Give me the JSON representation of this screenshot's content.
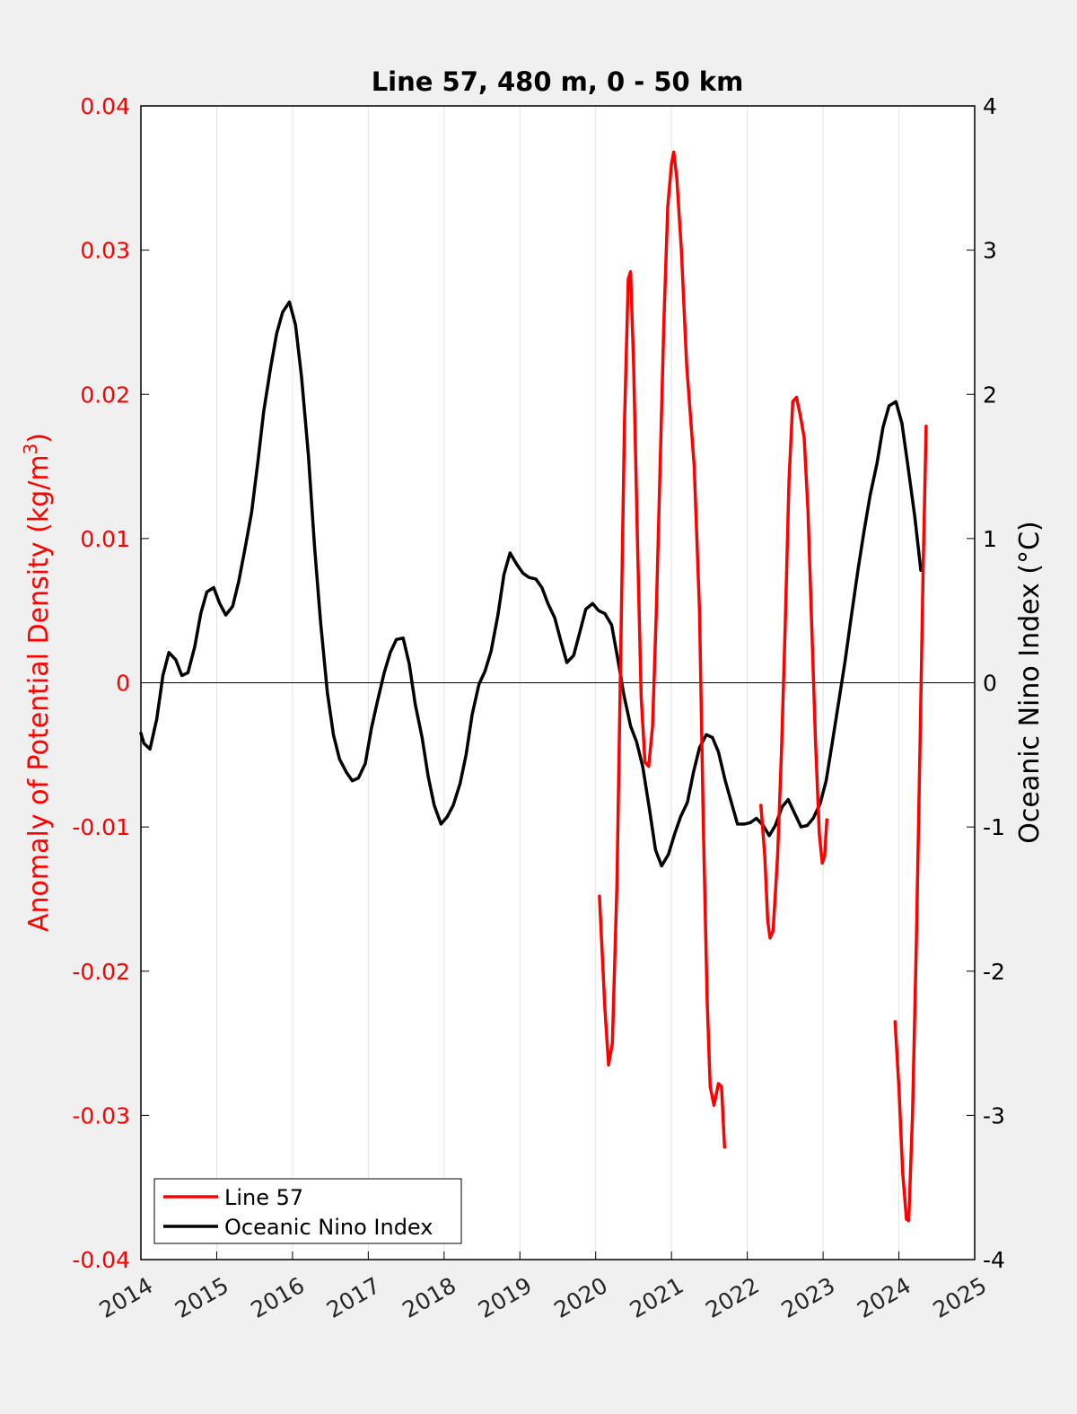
{
  "chart_data": {
    "type": "line",
    "title": "Line 57, 480 m, 0 - 50 km",
    "xlabel": "",
    "ylabel_left": "Anomaly of Potential Density (kg/m",
    "ylabel_left_sup": "3",
    "ylabel_left_close": ")",
    "ylabel_right": "Oceanic Nino Index (°C)",
    "xlim": [
      2014,
      2025
    ],
    "ylim_left": [
      -0.04,
      0.04
    ],
    "ylim_right": [
      -4,
      4
    ],
    "x_ticks": [
      "2014",
      "2015",
      "2016",
      "2017",
      "2018",
      "2019",
      "2020",
      "2021",
      "2022",
      "2023",
      "2024",
      "2025"
    ],
    "y_left_ticks": [
      "0.04",
      "0.03",
      "0.02",
      "0.01",
      "0",
      "-0.01",
      "-0.02",
      "-0.03",
      "-0.04"
    ],
    "y_right_ticks": [
      "4",
      "3",
      "2",
      "1",
      "0",
      "-1",
      "-2",
      "-3",
      "-4"
    ],
    "grid": "vertical",
    "legend": {
      "position": "bottom-left",
      "entries": [
        "Line 57",
        "Oceanic Nino Index"
      ]
    },
    "colors": {
      "line57": "#ff0000",
      "oni": "#000000",
      "left_axis": "#ff0000",
      "right_axis": "#000000"
    },
    "series": [
      {
        "name": "Line 57",
        "axis": "left",
        "segments": [
          [
            [
              2020.05,
              -0.0148
            ],
            [
              2020.12,
              -0.0225
            ],
            [
              2020.17,
              -0.0265
            ],
            [
              2020.22,
              -0.025
            ],
            [
              2020.28,
              -0.014
            ],
            [
              2020.33,
              0.002
            ],
            [
              2020.38,
              0.018
            ],
            [
              2020.43,
              0.028
            ],
            [
              2020.46,
              0.0285
            ],
            [
              2020.5,
              0.022
            ],
            [
              2020.55,
              0.01
            ],
            [
              2020.6,
              -0.001
            ],
            [
              2020.65,
              -0.0055
            ],
            [
              2020.7,
              -0.0058
            ],
            [
              2020.75,
              -0.003
            ],
            [
              2020.8,
              0.005
            ],
            [
              2020.85,
              0.015
            ],
            [
              2020.9,
              0.025
            ],
            [
              2020.95,
              0.033
            ],
            [
              2021.0,
              0.036
            ],
            [
              2021.03,
              0.0368
            ],
            [
              2021.07,
              0.035
            ],
            [
              2021.13,
              0.03
            ],
            [
              2021.2,
              0.022
            ],
            [
              2021.3,
              0.015
            ],
            [
              2021.37,
              0.005
            ],
            [
              2021.42,
              -0.01
            ],
            [
              2021.47,
              -0.022
            ],
            [
              2021.51,
              -0.028
            ],
            [
              2021.56,
              -0.0293
            ],
            [
              2021.62,
              -0.0278
            ],
            [
              2021.66,
              -0.028
            ],
            [
              2021.7,
              -0.0322
            ]
          ],
          [
            [
              2022.18,
              -0.0085
            ],
            [
              2022.23,
              -0.012
            ],
            [
              2022.27,
              -0.0165
            ],
            [
              2022.3,
              -0.0177
            ],
            [
              2022.34,
              -0.0172
            ],
            [
              2022.4,
              -0.012
            ],
            [
              2022.45,
              -0.005
            ],
            [
              2022.5,
              0.004
            ],
            [
              2022.55,
              0.014
            ],
            [
              2022.6,
              0.0195
            ],
            [
              2022.65,
              0.0198
            ],
            [
              2022.7,
              0.0185
            ],
            [
              2022.75,
              0.017
            ],
            [
              2022.8,
              0.012
            ],
            [
              2022.85,
              0.004
            ],
            [
              2022.9,
              -0.004
            ],
            [
              2022.95,
              -0.0105
            ],
            [
              2022.99,
              -0.0125
            ],
            [
              2023.02,
              -0.012
            ],
            [
              2023.05,
              -0.0095
            ]
          ],
          [
            [
              2023.95,
              -0.0235
            ],
            [
              2024.0,
              -0.028
            ],
            [
              2024.05,
              -0.034
            ],
            [
              2024.1,
              -0.0372
            ],
            [
              2024.13,
              -0.0373
            ],
            [
              2024.18,
              -0.03
            ],
            [
              2024.23,
              -0.018
            ],
            [
              2024.28,
              -0.004
            ],
            [
              2024.32,
              0.008
            ],
            [
              2024.36,
              0.0178
            ]
          ]
        ]
      },
      {
        "name": "Oceanic Nino Index",
        "axis": "right",
        "segments": [
          [
            [
              2014.0,
              -0.35
            ],
            [
              2014.04,
              -0.42
            ],
            [
              2014.12,
              -0.46
            ],
            [
              2014.21,
              -0.25
            ],
            [
              2014.29,
              0.05
            ],
            [
              2014.37,
              0.21
            ],
            [
              2014.46,
              0.16
            ],
            [
              2014.54,
              0.05
            ],
            [
              2014.62,
              0.07
            ],
            [
              2014.71,
              0.25
            ],
            [
              2014.79,
              0.48
            ],
            [
              2014.87,
              0.63
            ],
            [
              2014.96,
              0.66
            ],
            [
              2015.04,
              0.55
            ],
            [
              2015.12,
              0.47
            ],
            [
              2015.21,
              0.53
            ],
            [
              2015.29,
              0.7
            ],
            [
              2015.37,
              0.92
            ],
            [
              2015.46,
              1.18
            ],
            [
              2015.54,
              1.52
            ],
            [
              2015.62,
              1.88
            ],
            [
              2015.71,
              2.18
            ],
            [
              2015.79,
              2.42
            ],
            [
              2015.87,
              2.57
            ],
            [
              2015.96,
              2.64
            ],
            [
              2016.04,
              2.48
            ],
            [
              2016.12,
              2.12
            ],
            [
              2016.21,
              1.58
            ],
            [
              2016.29,
              0.95
            ],
            [
              2016.37,
              0.42
            ],
            [
              2016.46,
              -0.07
            ],
            [
              2016.54,
              -0.36
            ],
            [
              2016.62,
              -0.53
            ],
            [
              2016.71,
              -0.62
            ],
            [
              2016.79,
              -0.68
            ],
            [
              2016.87,
              -0.66
            ],
            [
              2016.96,
              -0.56
            ],
            [
              2017.04,
              -0.32
            ],
            [
              2017.12,
              -0.13
            ],
            [
              2017.21,
              0.07
            ],
            [
              2017.29,
              0.21
            ],
            [
              2017.37,
              0.3
            ],
            [
              2017.46,
              0.31
            ],
            [
              2017.54,
              0.13
            ],
            [
              2017.62,
              -0.15
            ],
            [
              2017.71,
              -0.38
            ],
            [
              2017.79,
              -0.65
            ],
            [
              2017.87,
              -0.85
            ],
            [
              2017.96,
              -0.98
            ],
            [
              2018.04,
              -0.93
            ],
            [
              2018.12,
              -0.85
            ],
            [
              2018.21,
              -0.7
            ],
            [
              2018.29,
              -0.5
            ],
            [
              2018.37,
              -0.22
            ],
            [
              2018.46,
              -0.01
            ],
            [
              2018.54,
              0.08
            ],
            [
              2018.62,
              0.22
            ],
            [
              2018.71,
              0.47
            ],
            [
              2018.79,
              0.75
            ],
            [
              2018.87,
              0.9
            ],
            [
              2018.96,
              0.82
            ],
            [
              2019.04,
              0.76
            ],
            [
              2019.12,
              0.73
            ],
            [
              2019.21,
              0.72
            ],
            [
              2019.29,
              0.66
            ],
            [
              2019.37,
              0.55
            ],
            [
              2019.46,
              0.45
            ],
            [
              2019.54,
              0.29
            ],
            [
              2019.62,
              0.14
            ],
            [
              2019.71,
              0.19
            ],
            [
              2019.79,
              0.35
            ],
            [
              2019.87,
              0.51
            ],
            [
              2019.96,
              0.55
            ],
            [
              2020.04,
              0.5
            ],
            [
              2020.12,
              0.48
            ],
            [
              2020.21,
              0.4
            ],
            [
              2020.29,
              0.17
            ],
            [
              2020.37,
              -0.08
            ],
            [
              2020.46,
              -0.3
            ],
            [
              2020.54,
              -0.41
            ],
            [
              2020.62,
              -0.58
            ],
            [
              2020.71,
              -0.88
            ],
            [
              2020.79,
              -1.16
            ],
            [
              2020.87,
              -1.27
            ],
            [
              2020.96,
              -1.19
            ],
            [
              2021.04,
              -1.05
            ],
            [
              2021.12,
              -0.93
            ],
            [
              2021.21,
              -0.83
            ],
            [
              2021.29,
              -0.62
            ],
            [
              2021.37,
              -0.45
            ],
            [
              2021.46,
              -0.36
            ],
            [
              2021.54,
              -0.38
            ],
            [
              2021.62,
              -0.48
            ],
            [
              2021.71,
              -0.68
            ],
            [
              2021.79,
              -0.83
            ],
            [
              2021.87,
              -0.98
            ],
            [
              2021.96,
              -0.98
            ],
            [
              2022.04,
              -0.97
            ],
            [
              2022.12,
              -0.94
            ],
            [
              2022.21,
              -0.99
            ],
            [
              2022.29,
              -1.06
            ],
            [
              2022.37,
              -0.99
            ],
            [
              2022.46,
              -0.86
            ],
            [
              2022.54,
              -0.81
            ],
            [
              2022.62,
              -0.9
            ],
            [
              2022.71,
              -1.0
            ],
            [
              2022.79,
              -0.99
            ],
            [
              2022.87,
              -0.94
            ],
            [
              2022.96,
              -0.84
            ],
            [
              2023.04,
              -0.68
            ],
            [
              2023.12,
              -0.42
            ],
            [
              2023.21,
              -0.12
            ],
            [
              2023.29,
              0.15
            ],
            [
              2023.37,
              0.45
            ],
            [
              2023.46,
              0.78
            ],
            [
              2023.54,
              1.05
            ],
            [
              2023.62,
              1.3
            ],
            [
              2023.71,
              1.52
            ],
            [
              2023.79,
              1.77
            ],
            [
              2023.87,
              1.92
            ],
            [
              2023.96,
              1.95
            ],
            [
              2024.04,
              1.8
            ],
            [
              2024.12,
              1.5
            ],
            [
              2024.21,
              1.15
            ],
            [
              2024.29,
              0.78
            ]
          ]
        ]
      }
    ]
  }
}
